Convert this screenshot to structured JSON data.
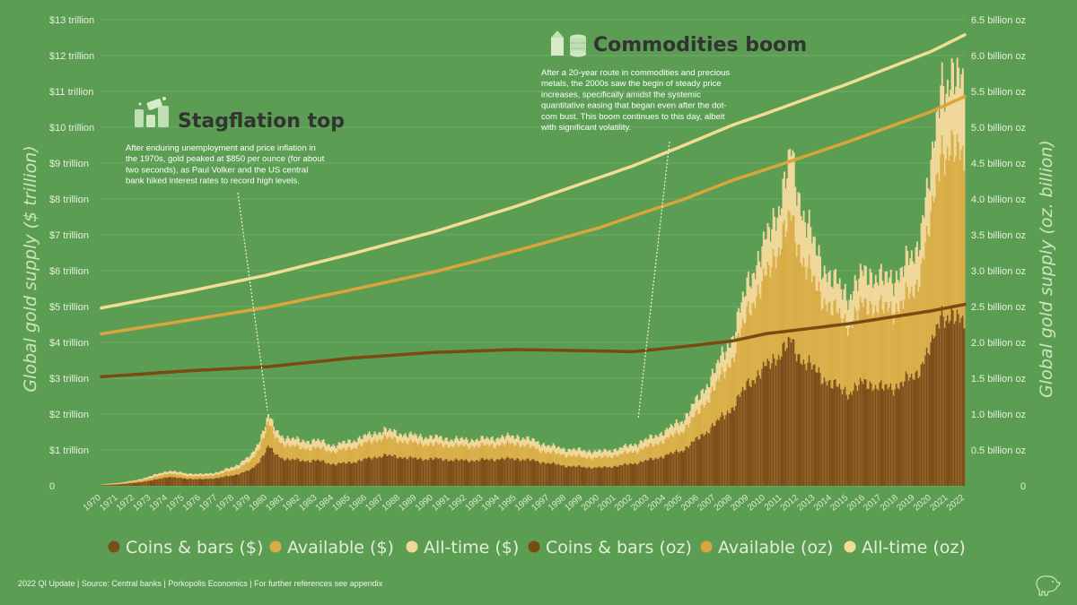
{
  "chart_data": {
    "type": "area",
    "y_left": {
      "title": "Global gold supply ($ trillion)",
      "range": [
        0,
        13
      ],
      "ticks": [
        "0",
        "$1 trillion",
        "$2 trillion",
        "$3 trillion",
        "$4 trillion",
        "$5 trillion",
        "$6 trillion",
        "$7 trillion",
        "$8 trillion",
        "$9 trillion",
        "$10 trillion",
        "$11 trillion",
        "$12 trillion",
        "$13 trillion"
      ]
    },
    "y_right": {
      "title": "Global gold supply (oz. billion)",
      "range": [
        0,
        6.5
      ],
      "ticks": [
        "0",
        "0.5 billion oz",
        "1.0 billion oz",
        "1.5 billion oz",
        "2.0 billion oz",
        "2.5 billion oz",
        "3.0 billion oz",
        "3.5 billion oz",
        "4.0 billion oz",
        "4.5 billion oz",
        "5.0 billion oz",
        "5.5 billion oz",
        "6.0 billion oz",
        "6.5 billion oz"
      ]
    },
    "x_ticks": [
      "1970",
      "1971",
      "1972",
      "1973",
      "1974",
      "1975",
      "1976",
      "1977",
      "1978",
      "1979",
      "1980",
      "1981",
      "1982",
      "1983",
      "1984",
      "1985",
      "1986",
      "1987",
      "1988",
      "1989",
      "1990",
      "1991",
      "1992",
      "1993",
      "1994",
      "1995",
      "1996",
      "1997",
      "1998",
      "1999",
      "2000",
      "2001",
      "2002",
      "2003",
      "2004",
      "2005",
      "2006",
      "2007",
      "2008",
      "2009",
      "2010",
      "2011",
      "2012",
      "2013",
      "2014",
      "2015",
      "2016",
      "2017",
      "2018",
      "2019",
      "2020",
      "2021",
      "2022"
    ],
    "x_range": [
      1970,
      2022
    ],
    "dollar_series": {
      "years": [
        1970,
        1971,
        1972,
        1973,
        1974,
        1975,
        1976,
        1977,
        1978,
        1979,
        1979.5,
        1980,
        1980.5,
        1981,
        1982,
        1983,
        1984,
        1985,
        1986,
        1987,
        1988,
        1989,
        1990,
        1991,
        1992,
        1993,
        1994,
        1995,
        1996,
        1997,
        1998,
        1999,
        2000,
        2001,
        2002,
        2003,
        2004,
        2005,
        2006,
        2007,
        2008,
        2009,
        2010,
        2011,
        2011.5,
        2012,
        2013,
        2014,
        2015,
        2016,
        2017,
        2018,
        2019,
        2020,
        2020.5,
        2021,
        2022
      ],
      "coins_bars": [
        0.02,
        0.04,
        0.08,
        0.15,
        0.25,
        0.2,
        0.18,
        0.22,
        0.3,
        0.45,
        0.7,
        1.1,
        0.85,
        0.75,
        0.7,
        0.7,
        0.6,
        0.65,
        0.75,
        0.85,
        0.8,
        0.75,
        0.75,
        0.72,
        0.7,
        0.72,
        0.75,
        0.75,
        0.7,
        0.62,
        0.55,
        0.52,
        0.5,
        0.55,
        0.62,
        0.72,
        0.85,
        1.0,
        1.35,
        1.75,
        2.2,
        2.9,
        3.3,
        3.8,
        4.0,
        3.6,
        3.2,
        2.8,
        2.6,
        2.9,
        2.7,
        2.8,
        3.1,
        3.9,
        4.9,
        4.6,
        4.7
      ],
      "available": [
        0.03,
        0.06,
        0.12,
        0.22,
        0.35,
        0.28,
        0.26,
        0.32,
        0.45,
        0.7,
        1.1,
        1.75,
        1.3,
        1.15,
        1.05,
        1.05,
        0.95,
        1.05,
        1.2,
        1.35,
        1.25,
        1.18,
        1.15,
        1.12,
        1.1,
        1.12,
        1.15,
        1.18,
        1.05,
        0.92,
        0.85,
        0.8,
        0.78,
        0.85,
        0.95,
        1.1,
        1.3,
        1.55,
        2.1,
        2.8,
        3.6,
        5.0,
        5.8,
        7.0,
        7.4,
        6.6,
        5.5,
        4.9,
        4.5,
        5.1,
        4.9,
        5.0,
        5.5,
        7.5,
        9.5,
        9.2,
        9.4
      ],
      "all_time": [
        0.04,
        0.08,
        0.15,
        0.28,
        0.42,
        0.35,
        0.32,
        0.38,
        0.55,
        0.85,
        1.3,
        1.95,
        1.5,
        1.35,
        1.25,
        1.25,
        1.12,
        1.25,
        1.4,
        1.55,
        1.45,
        1.38,
        1.35,
        1.3,
        1.28,
        1.3,
        1.35,
        1.38,
        1.25,
        1.1,
        1.02,
        0.98,
        0.95,
        1.02,
        1.15,
        1.32,
        1.55,
        1.85,
        2.5,
        3.3,
        4.2,
        5.8,
        6.8,
        8.2,
        9.2,
        8.0,
        6.5,
        5.7,
        5.3,
        6.0,
        5.7,
        5.9,
        6.5,
        8.9,
        11.5,
        11.0,
        11.6
      ]
    },
    "oz_series": {
      "years": [
        1970,
        1975,
        1980,
        1985,
        1990,
        1995,
        2000,
        2002,
        2005,
        2008,
        2010,
        2015,
        2020,
        2022
      ],
      "coins_bars": [
        1.52,
        1.6,
        1.66,
        1.78,
        1.86,
        1.9,
        1.88,
        1.87,
        1.94,
        2.02,
        2.12,
        2.26,
        2.44,
        2.53
      ],
      "available": [
        2.12,
        2.3,
        2.49,
        2.73,
        2.98,
        3.28,
        3.6,
        3.76,
        3.99,
        4.26,
        4.41,
        4.8,
        5.22,
        5.43
      ],
      "all_time": [
        2.48,
        2.7,
        2.94,
        3.23,
        3.54,
        3.9,
        4.3,
        4.46,
        4.74,
        5.03,
        5.19,
        5.61,
        6.06,
        6.29
      ]
    },
    "colors": {
      "coins_bars": "#7b4e1a",
      "available": "#d8ad45",
      "all_time": "#f0d79a",
      "oz_coins_bars": "#7a4a12",
      "oz_available": "#d9a63e",
      "oz_all_time": "#f2dd94",
      "background": "#5b9e53",
      "gridline": "#6dab64"
    },
    "legend": [
      {
        "label": "Coins & bars ($)",
        "color": "#7b4e1a"
      },
      {
        "label": "Available ($)",
        "color": "#d8ad45"
      },
      {
        "label": "All-time ($)",
        "color": "#f0d79a"
      },
      {
        "label": "Coins & bars (oz)",
        "color": "#7a4a12"
      },
      {
        "label": "Available (oz)",
        "color": "#d9a63e"
      },
      {
        "label": "All-time (oz)",
        "color": "#f2dd94"
      }
    ],
    "legend_position": "bottom",
    "annotations": [
      {
        "title": "Stagflation top",
        "text": [
          "After enduring unemployment and price inflation in",
          "the 1970s, gold peaked at $850 per ounce (for about",
          "two seconds), as Paul Volker and the US central",
          "bank hiked interest rates to record high levels."
        ],
        "icon": "inflation-icon",
        "points_to_year": 1980
      },
      {
        "title": "Commodities boom",
        "text": [
          "After a 20-year route in commodities and precious",
          "metals, the 2000s saw the begin of steady price",
          "increases, specifically amidst the systemic",
          "quantitative easing that began even after the dot-",
          "com bust. This boom continues to this day, albeit",
          "with significant volatility."
        ],
        "icon": "commodities-icon",
        "points_to_year": 2002.5
      }
    ]
  },
  "footer": {
    "text": "2022 QI Update | Source: Central banks | Porkopolis Economics | For further references see appendix",
    "logo_icon": "pig-logo-icon"
  }
}
